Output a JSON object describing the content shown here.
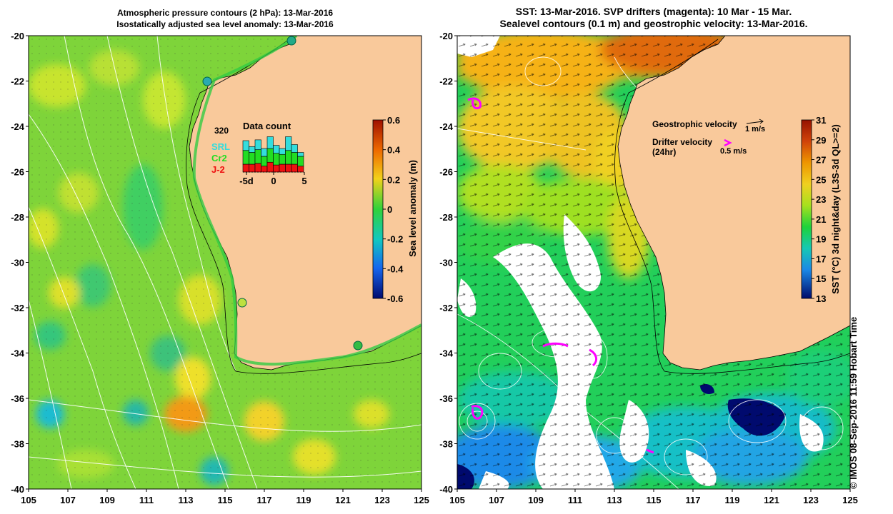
{
  "left_panel": {
    "title_line1": "Atmospheric pressure contours (2 hPa): 13-Mar-2016",
    "title_line2": "Isostatically adjusted sea level anomaly: 13-Mar-2016",
    "colorbar": {
      "label": "Sea level anomaly (m)",
      "ticks": [
        "0.6",
        "0.4",
        "0.2",
        "0",
        "-0.2",
        "-0.4",
        "-0.6"
      ]
    },
    "inset": {
      "title": "Data count",
      "max_label": "320",
      "legend": [
        {
          "name": "SRL",
          "color": "#33dddd"
        },
        {
          "name": "Cr2",
          "color": "#22dd22"
        },
        {
          "name": "J-2",
          "color": "#ee1111"
        }
      ],
      "x_ticks": [
        "-5d",
        "0",
        "5"
      ],
      "bars": [
        {
          "srl": 0.25,
          "cr2": 0.35,
          "j2": 0.2
        },
        {
          "srl": 0.15,
          "cr2": 0.3,
          "j2": 0.2
        },
        {
          "srl": 0.25,
          "cr2": 0.35,
          "j2": 0.22
        },
        {
          "srl": 0.2,
          "cr2": 0.25,
          "j2": 0.15
        },
        {
          "srl": 0.3,
          "cr2": 0.35,
          "j2": 0.25
        },
        {
          "srl": 0.2,
          "cr2": 0.3,
          "j2": 0.18
        },
        {
          "srl": 0.15,
          "cr2": 0.25,
          "j2": 0.2
        },
        {
          "srl": 0.35,
          "cr2": 0.35,
          "j2": 0.2
        },
        {
          "srl": 0.2,
          "cr2": 0.3,
          "j2": 0.2
        },
        {
          "srl": 0.1,
          "cr2": 0.25,
          "j2": 0.15
        }
      ]
    }
  },
  "right_panel": {
    "title_line1": "SST: 13-Mar-2016. SVP drifters (magenta): 10 Mar - 15 Mar.",
    "title_line2": "Sealevel contours (0.1 m) and geostrophic velocity: 13-Mar-2016.",
    "legend": {
      "geostrophic_label": "Geostrophic velocity",
      "geostrophic_scale": "1 m/s",
      "drifter_label": "Drifter velocity",
      "drifter_sub": "(24hr)",
      "drifter_scale": "0.5 m/s"
    },
    "colorbar": {
      "label": "SST (°C) 3d night&day (L3S-3d QL>=2)",
      "ticks": [
        "31",
        "29",
        "27",
        "25",
        "23",
        "21",
        "19",
        "17",
        "15",
        "13"
      ]
    }
  },
  "axes": {
    "lat_ticks": [
      "-20",
      "-22",
      "-24",
      "-26",
      "-28",
      "-30",
      "-32",
      "-34",
      "-36",
      "-38",
      "-40"
    ],
    "lon_ticks": [
      "105",
      "107",
      "109",
      "111",
      "113",
      "115",
      "117",
      "119",
      "121",
      "123",
      "125"
    ]
  },
  "copyright": "© IMOS 08-Sep-2016 11:59 Hobart Time",
  "colors": {
    "land": "#f9c99b",
    "coast": "#000000",
    "magenta": "#ff00ff"
  }
}
